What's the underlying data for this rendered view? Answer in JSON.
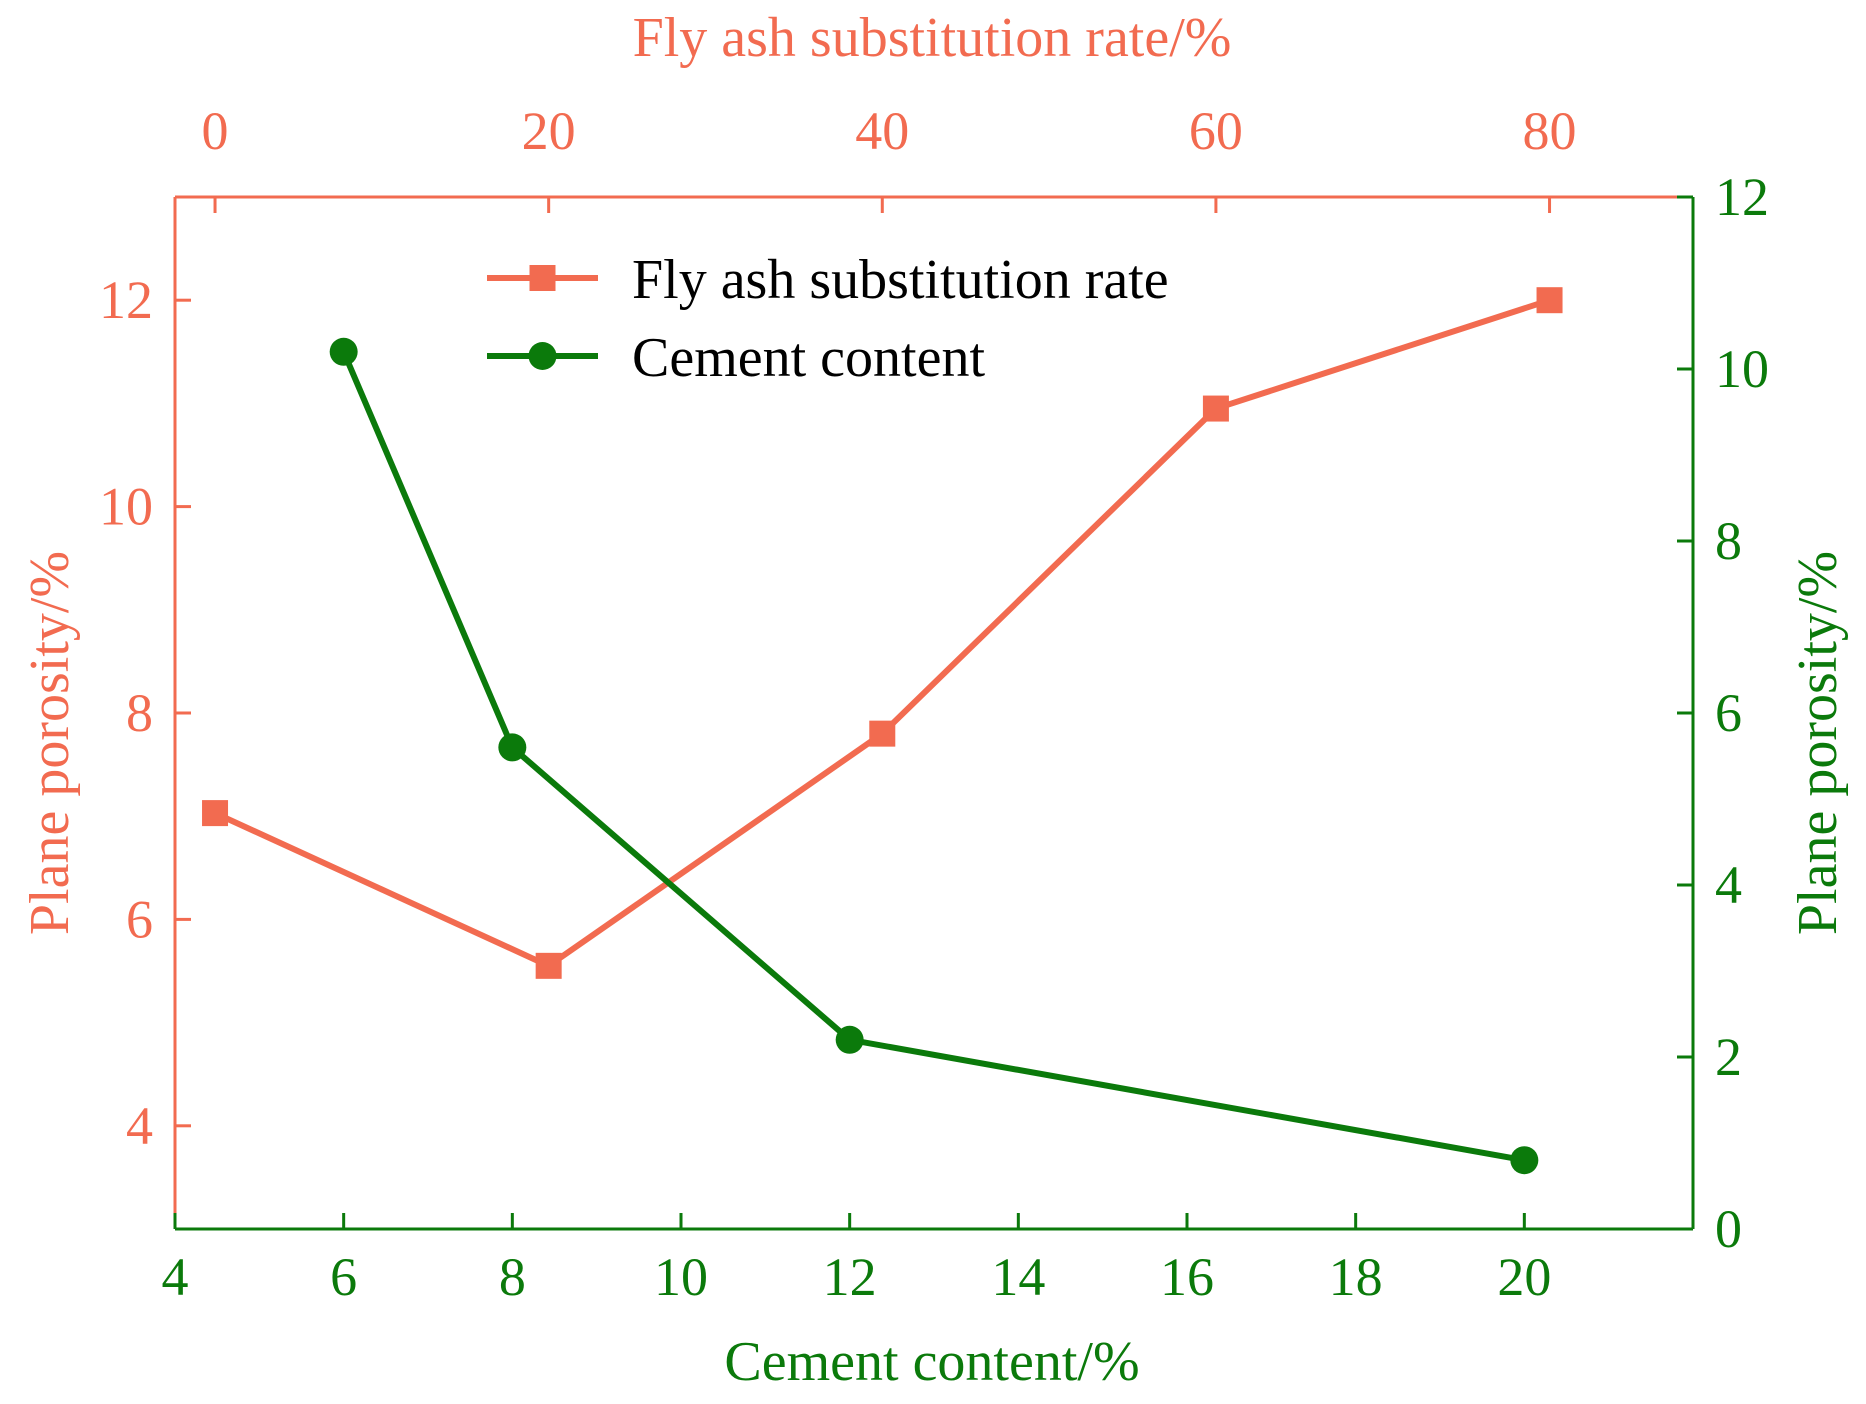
{
  "colors": {
    "fly_ash": "#F26B50",
    "cement": "#0B7A0B"
  },
  "chart_data": {
    "type": "line",
    "title": "",
    "top_axis": {
      "label": "Fly ash substitution rate/%",
      "range": [
        -2.4,
        88.6
      ],
      "ticks": [
        0,
        20,
        40,
        60,
        80
      ]
    },
    "bottom_axis": {
      "label": "Cement content/%",
      "range": [
        4,
        22
      ],
      "ticks": [
        4,
        6,
        8,
        10,
        12,
        14,
        16,
        18,
        20
      ]
    },
    "left_axis": {
      "label": "Plane porosity/%",
      "range": [
        3,
        13
      ],
      "ticks": [
        4,
        6,
        8,
        10,
        12
      ]
    },
    "right_axis": {
      "label": "Plane porosity/%",
      "range": [
        0,
        12
      ],
      "ticks": [
        0,
        2,
        4,
        6,
        8,
        10,
        12
      ]
    },
    "legend_position": "top-center",
    "series": [
      {
        "name": "Fly ash substitution rate",
        "x_axis": "top",
        "y_axis": "left",
        "marker": "square",
        "x": [
          0,
          20,
          40,
          60,
          80
        ],
        "y": [
          7.03,
          5.55,
          7.8,
          10.95,
          12.0
        ]
      },
      {
        "name": "Cement content",
        "x_axis": "bottom",
        "y_axis": "right",
        "marker": "circle",
        "x": [
          6,
          8,
          12,
          20
        ],
        "y": [
          10.2,
          5.6,
          2.2,
          0.8
        ]
      }
    ]
  }
}
